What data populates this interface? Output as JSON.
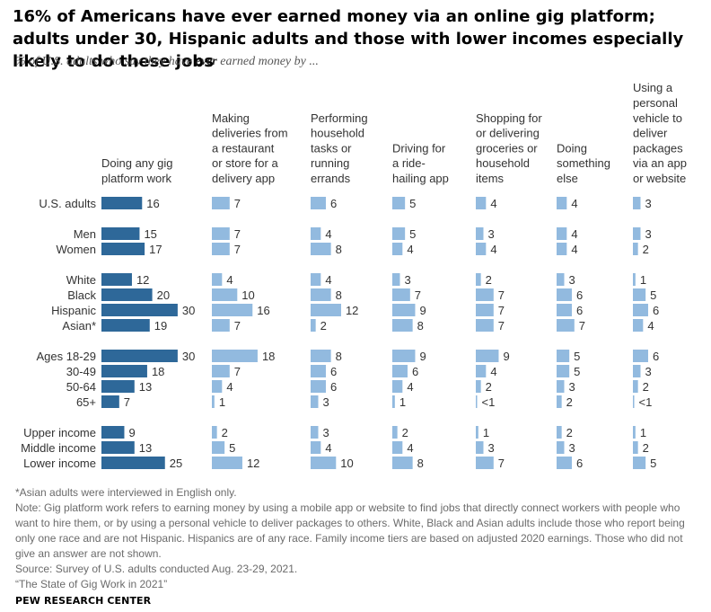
{
  "title": "16% of Americans have ever earned money via an online gig platform; adults under 30, Hispanic adults and those with lower incomes especially likely to do these jobs",
  "subtitle": {
    "pre": "% of U.S. adults who say they have ",
    "emphasis": "ever",
    "post": " earned money by ..."
  },
  "colors": {
    "primary": "#2e6899",
    "secondary": "#92badf",
    "background": "#ffffff",
    "label": "#333333"
  },
  "chart_data": {
    "type": "bar",
    "orientation": "horizontal",
    "categories": [
      "U.S. adults",
      "Men",
      "Women",
      "White",
      "Black",
      "Hispanic",
      "Asian*",
      "Ages 18-29",
      "30-49",
      "50-64",
      "65+",
      "Upper income",
      "Middle income",
      "Lower income"
    ],
    "groups": [
      [
        "U.S. adults"
      ],
      [
        "Men",
        "Women"
      ],
      [
        "White",
        "Black",
        "Hispanic",
        "Asian*"
      ],
      [
        "Ages 18-29",
        "30-49",
        "50-64",
        "65+"
      ],
      [
        "Upper income",
        "Middle income",
        "Lower income"
      ]
    ],
    "series": [
      {
        "name": "Doing any gig platform work",
        "header_lines": [
          "Doing any gig",
          "platform work"
        ],
        "values": [
          16,
          15,
          17,
          12,
          20,
          30,
          19,
          30,
          18,
          13,
          7,
          9,
          13,
          25
        ],
        "labels": [
          "16",
          "15",
          "17",
          "12",
          "20",
          "30",
          "19",
          "30",
          "18",
          "13",
          "7",
          "9",
          "13",
          "25"
        ]
      },
      {
        "name": "Making deliveries from a restaurant or store for a delivery app",
        "header_lines": [
          "Making",
          "deliveries from",
          "a restaurant",
          "or store for a",
          "delivery app"
        ],
        "values": [
          7,
          7,
          7,
          4,
          10,
          16,
          7,
          18,
          7,
          4,
          1,
          2,
          5,
          12
        ],
        "labels": [
          "7",
          "7",
          "7",
          "4",
          "10",
          "16",
          "7",
          "18",
          "7",
          "4",
          "1",
          "2",
          "5",
          "12"
        ]
      },
      {
        "name": "Performing household tasks or running errands",
        "header_lines": [
          "Performing",
          "household",
          "tasks or",
          "running",
          "errands"
        ],
        "values": [
          6,
          4,
          8,
          4,
          8,
          12,
          2,
          8,
          6,
          6,
          3,
          3,
          4,
          10
        ],
        "labels": [
          "6",
          "4",
          "8",
          "4",
          "8",
          "12",
          "2",
          "8",
          "6",
          "6",
          "3",
          "3",
          "4",
          "10"
        ]
      },
      {
        "name": "Driving for a ride-hailing app",
        "header_lines": [
          "Driving for",
          "a ride-",
          "hailing app"
        ],
        "values": [
          5,
          5,
          4,
          3,
          7,
          9,
          8,
          9,
          6,
          4,
          1,
          2,
          4,
          8
        ],
        "labels": [
          "5",
          "5",
          "4",
          "3",
          "7",
          "9",
          "8",
          "9",
          "6",
          "4",
          "1",
          "2",
          "4",
          "8"
        ]
      },
      {
        "name": "Shopping for or delivering groceries or household items",
        "header_lines": [
          "Shopping for",
          "or delivering",
          "groceries or",
          "household",
          "items"
        ],
        "values": [
          4,
          3,
          4,
          2,
          7,
          7,
          7,
          9,
          4,
          2,
          0.4,
          1,
          3,
          7
        ],
        "labels": [
          "4",
          "3",
          "4",
          "2",
          "7",
          "7",
          "7",
          "9",
          "4",
          "2",
          "<1",
          "1",
          "3",
          "7"
        ]
      },
      {
        "name": "Doing something else",
        "header_lines": [
          "Doing",
          "something",
          "else"
        ],
        "values": [
          4,
          4,
          4,
          3,
          6,
          6,
          7,
          5,
          5,
          3,
          2,
          2,
          3,
          6
        ],
        "labels": [
          "4",
          "4",
          "4",
          "3",
          "6",
          "6",
          "7",
          "5",
          "5",
          "3",
          "2",
          "2",
          "3",
          "6"
        ]
      },
      {
        "name": "Using a personal vehicle to deliver packages via an app or website",
        "header_lines": [
          "Using a",
          "personal",
          "vehicle to",
          "deliver",
          "packages",
          "via an app",
          "or website"
        ],
        "values": [
          3,
          3,
          2,
          1,
          5,
          6,
          4,
          6,
          3,
          2,
          0.4,
          1,
          2,
          5
        ],
        "labels": [
          "3",
          "3",
          "2",
          "1",
          "5",
          "6",
          "4",
          "6",
          "3",
          "2",
          "<1",
          "1",
          "2",
          "5"
        ]
      }
    ],
    "xlim": [
      0,
      30
    ],
    "gridlines": false
  },
  "footnotes": {
    "asian": "*Asian adults were interviewed in English only.",
    "note": "Note: Gig platform work refers to earning money by using a mobile app or website to find jobs that directly connect workers with people who want to hire them, or by using a personal vehicle to deliver packages to others. White, Black and Asian adults include those who report being only one race and are not Hispanic. Hispanics are of any race. Family income tiers are based on adjusted 2020 earnings. Those who did not give an answer are not shown.",
    "source": "Source: Survey of U.S. adults conducted Aug. 23-29, 2021.",
    "report": "“The State of Gig Work in 2021”"
  },
  "logo": "PEW RESEARCH CENTER"
}
